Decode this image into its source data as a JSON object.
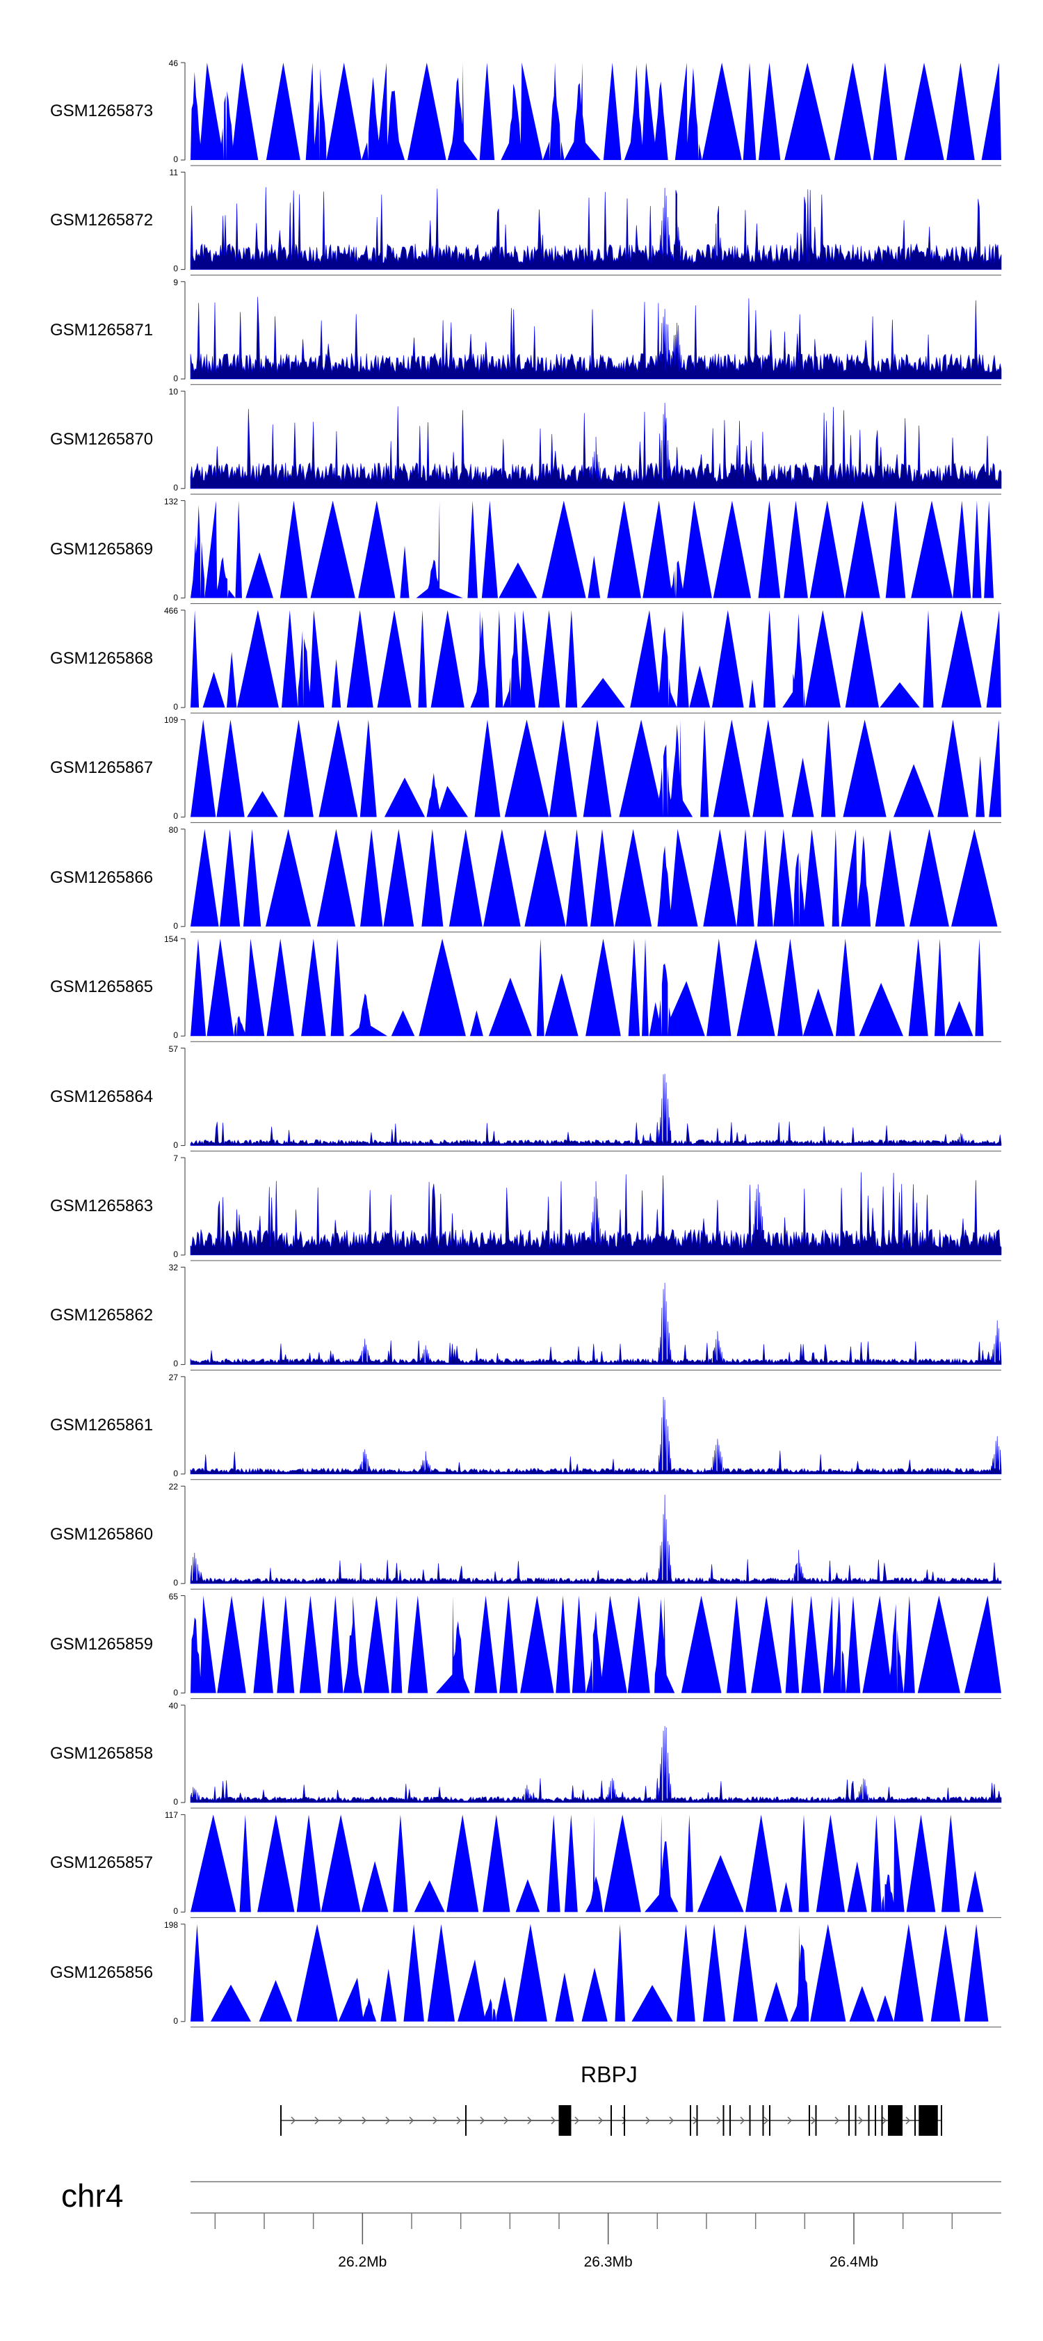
{
  "chart_data": {
    "type": "genome_browser_coverage",
    "tracks": [
      {
        "name": "GSM1265873",
        "ymax": 46,
        "ymin": 0,
        "style": "sparse",
        "peaks": [
          [
            0.005,
            1.0
          ],
          [
            0.045,
            1.0
          ],
          [
            0.16,
            1.0
          ],
          [
            0.225,
            1.0
          ],
          [
            0.25,
            1.0
          ],
          [
            0.33,
            1.0
          ],
          [
            0.4,
            1.0
          ],
          [
            0.45,
            1.0
          ],
          [
            0.48,
            1.0
          ],
          [
            0.55,
            1.0
          ],
          [
            0.58,
            1.0
          ],
          [
            0.62,
            1.0
          ]
        ]
      },
      {
        "name": "GSM1265872",
        "ymax": 11,
        "ymin": 0,
        "style": "dense",
        "peaks": [
          [
            0.585,
            1.0
          ],
          [
            0.6,
            0.55
          ],
          [
            0.65,
            0.6
          ]
        ]
      },
      {
        "name": "GSM1265871",
        "ymax": 9,
        "ymin": 0,
        "style": "dense",
        "peaks": [
          [
            0.585,
            1.0
          ],
          [
            0.6,
            0.75
          ]
        ]
      },
      {
        "name": "GSM1265870",
        "ymax": 10,
        "ymin": 0,
        "style": "dense",
        "peaks": [
          [
            0.585,
            1.0
          ],
          [
            0.5,
            0.6
          ]
        ]
      },
      {
        "name": "GSM1265869",
        "ymax": 132,
        "ymin": 0,
        "style": "sparse",
        "peaks": [
          [
            0.01,
            1.0
          ],
          [
            0.04,
            0.5
          ],
          [
            0.3,
            0.5
          ],
          [
            0.6,
            0.5
          ]
        ]
      },
      {
        "name": "GSM1265868",
        "ymax": 466,
        "ymin": 0,
        "style": "sparse",
        "peaks": [
          [
            0.14,
            1.0
          ],
          [
            0.36,
            1.0
          ],
          [
            0.4,
            1.0
          ],
          [
            0.585,
            1.0
          ],
          [
            0.75,
            1.0
          ]
        ]
      },
      {
        "name": "GSM1265867",
        "ymax": 109,
        "ymin": 0,
        "style": "sparse",
        "peaks": [
          [
            0.585,
            0.95
          ],
          [
            0.6,
            1.0
          ],
          [
            0.3,
            0.5
          ]
        ]
      },
      {
        "name": "GSM1265866",
        "ymax": 80,
        "ymin": 0,
        "style": "sparse",
        "peaks": [
          [
            0.585,
            1.0
          ],
          [
            0.75,
            1.0
          ],
          [
            0.83,
            1.0
          ]
        ]
      },
      {
        "name": "GSM1265865",
        "ymax": 154,
        "ymin": 0,
        "style": "sparse",
        "peaks": [
          [
            0.215,
            0.55
          ],
          [
            0.585,
            1.0
          ],
          [
            0.06,
            0.25
          ]
        ]
      },
      {
        "name": "GSM1265864",
        "ymax": 57,
        "ymin": 0,
        "style": "low",
        "peaks": [
          [
            0.585,
            1.0
          ],
          [
            0.95,
            0.15
          ]
        ]
      },
      {
        "name": "GSM1265863",
        "ymax": 7,
        "ymin": 0,
        "style": "dense",
        "peaks": [
          [
            0.7,
            1.0
          ],
          [
            0.5,
            0.85
          ]
        ]
      },
      {
        "name": "GSM1265862",
        "ymax": 32,
        "ymin": 0,
        "style": "low",
        "peaks": [
          [
            0.585,
            1.0
          ],
          [
            0.65,
            0.35
          ],
          [
            0.215,
            0.3
          ],
          [
            0.29,
            0.2
          ],
          [
            0.995,
            0.5
          ]
        ]
      },
      {
        "name": "GSM1265861",
        "ymax": 27,
        "ymin": 0,
        "style": "low",
        "peaks": [
          [
            0.585,
            1.0
          ],
          [
            0.65,
            0.45
          ],
          [
            0.215,
            0.3
          ],
          [
            0.29,
            0.25
          ],
          [
            0.995,
            0.45
          ]
        ]
      },
      {
        "name": "GSM1265860",
        "ymax": 22,
        "ymin": 0,
        "style": "low",
        "peaks": [
          [
            0.585,
            1.0
          ],
          [
            0.005,
            0.35
          ],
          [
            0.75,
            0.35
          ]
        ]
      },
      {
        "name": "GSM1265859",
        "ymax": 65,
        "ymin": 0,
        "style": "sparse",
        "peaks": [
          [
            0.005,
            1.0
          ],
          [
            0.2,
            1.0
          ],
          [
            0.33,
            1.0
          ],
          [
            0.5,
            1.0
          ],
          [
            0.58,
            1.0
          ],
          [
            0.8,
            1.0
          ],
          [
            0.87,
            1.0
          ]
        ]
      },
      {
        "name": "GSM1265858",
        "ymax": 40,
        "ymin": 0,
        "style": "low",
        "peaks": [
          [
            0.585,
            1.0
          ],
          [
            0.52,
            0.3
          ],
          [
            0.415,
            0.2
          ],
          [
            0.83,
            0.3
          ],
          [
            0.005,
            0.2
          ]
        ]
      },
      {
        "name": "GSM1265857",
        "ymax": 117,
        "ymin": 0,
        "style": "sparse",
        "peaks": [
          [
            0.585,
            1.0
          ],
          [
            0.5,
            0.5
          ],
          [
            0.86,
            0.5
          ]
        ]
      },
      {
        "name": "GSM1265856",
        "ymax": 198,
        "ymin": 0,
        "style": "sparse",
        "peaks": [
          [
            0.755,
            1.0
          ],
          [
            0.22,
            0.3
          ],
          [
            0.37,
            0.3
          ]
        ]
      }
    ],
    "gene": {
      "name": "RBPJ",
      "exon_positions_frac": [
        0.0,
        0.28,
        0.43,
        0.5,
        0.52,
        0.62,
        0.63,
        0.67,
        0.68,
        0.71,
        0.73,
        0.74,
        0.8,
        0.81,
        0.86,
        0.87,
        0.89,
        0.9,
        0.91,
        0.92,
        0.93,
        0.94,
        0.96,
        0.97,
        0.985,
        1.0
      ],
      "thick_exons_frac": [
        0.43,
        0.93,
        0.975,
        0.985
      ]
    },
    "chromosome": "chr4",
    "axis": {
      "min_mb": 26.13,
      "max_mb": 26.46,
      "labels": [
        "26.2Mb",
        "26.3Mb",
        "26.4Mb"
      ],
      "label_values": [
        26.2,
        26.3,
        26.4
      ],
      "minor_ticks": [
        26.14,
        26.16,
        26.18,
        26.22,
        26.24,
        26.26,
        26.28,
        26.32,
        26.34,
        26.36,
        26.38,
        26.42,
        26.44
      ]
    },
    "color": "#0000ff",
    "dark_color": "#00008b"
  }
}
